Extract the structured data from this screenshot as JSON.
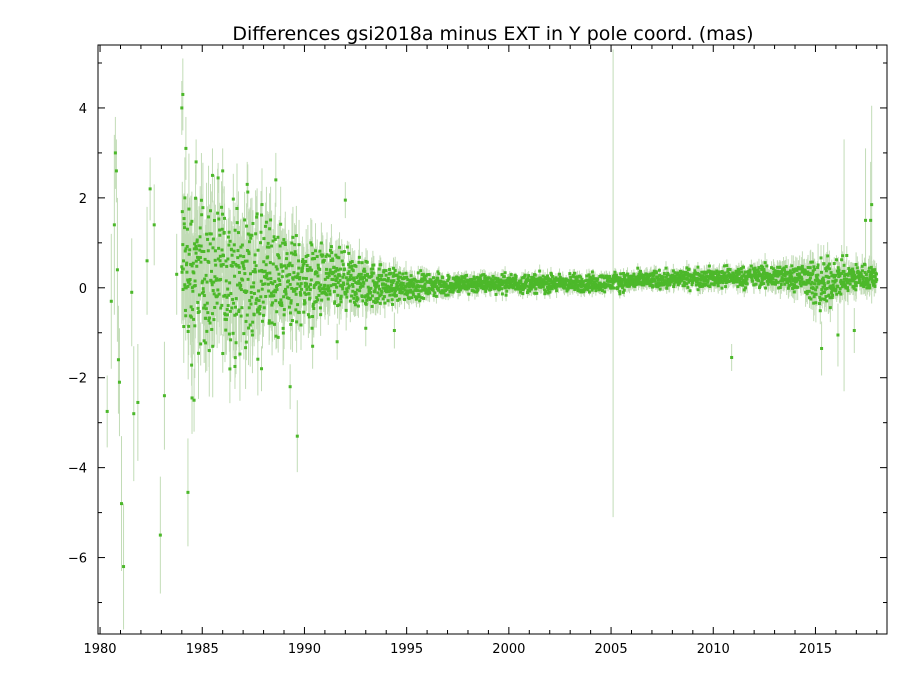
{
  "chart_data": {
    "type": "scatter",
    "title": "Differences gsi2018a minus EXT in Y pole coord. (mas)",
    "xlabel": "",
    "ylabel": "",
    "xlim": [
      1979.9,
      2018.5
    ],
    "ylim": [
      -7.7,
      5.4
    ],
    "xticks": [
      1980,
      1985,
      1990,
      1995,
      2000,
      2005,
      2010,
      2015
    ],
    "xtick_labels": [
      "1980",
      "1985",
      "1990",
      "1995",
      "2000",
      "2005",
      "2010",
      "2015"
    ],
    "yticks": [
      -6,
      -4,
      -2,
      0,
      2,
      4
    ],
    "ytick_labels": [
      "−6",
      "−4",
      "−2",
      "0",
      "2",
      "4"
    ],
    "grid": false,
    "colors": {
      "points": "#4cb82a",
      "error_bars": "#c2dcb7"
    },
    "series": [
      {
        "points": [
          {
            "x": 1980.35,
            "y": -2.75,
            "err": 0.8
          },
          {
            "x": 1980.55,
            "y": -0.3,
            "err": 1.5
          },
          {
            "x": 1980.7,
            "y": 1.4,
            "err": 2.0
          },
          {
            "x": 1980.75,
            "y": 3.0,
            "err": 0.8
          },
          {
            "x": 1980.8,
            "y": 2.6,
            "err": 0.7
          },
          {
            "x": 1980.85,
            "y": 0.4,
            "err": 1.6
          },
          {
            "x": 1980.9,
            "y": -1.6,
            "err": 1.2
          },
          {
            "x": 1980.95,
            "y": -2.1,
            "err": 1.2
          },
          {
            "x": 1981.05,
            "y": -4.8,
            "err": 1.5
          },
          {
            "x": 1981.15,
            "y": -6.2,
            "err": 1.4
          },
          {
            "x": 1981.55,
            "y": -0.1,
            "err": 1.2
          },
          {
            "x": 1981.65,
            "y": -2.8,
            "err": 1.5
          },
          {
            "x": 1981.85,
            "y": -2.55,
            "err": 1.3
          },
          {
            "x": 1982.3,
            "y": 0.6,
            "err": 1.2
          },
          {
            "x": 1982.45,
            "y": 2.2,
            "err": 0.7
          },
          {
            "x": 1982.65,
            "y": 1.4,
            "err": 0.9
          },
          {
            "x": 1982.95,
            "y": -5.5,
            "err": 1.3
          },
          {
            "x": 1983.15,
            "y": -2.4,
            "err": 1.2
          },
          {
            "x": 1983.75,
            "y": 0.3,
            "err": 0.9
          },
          {
            "x": 1984.0,
            "y": 4.0,
            "err": 0.6
          },
          {
            "x": 1984.05,
            "y": 4.3,
            "err": 0.8
          },
          {
            "x": 1984.15,
            "y": 2.0,
            "err": 0.9
          },
          {
            "x": 1984.2,
            "y": 3.1,
            "err": 0.7
          },
          {
            "x": 1984.3,
            "y": -4.55,
            "err": 1.2
          },
          {
            "x": 1984.5,
            "y": -2.45,
            "err": 0.8
          },
          {
            "x": 1984.6,
            "y": -2.5,
            "err": 0.7
          },
          {
            "x": 1984.7,
            "y": 2.8,
            "err": 0.5
          },
          {
            "x": 1985.5,
            "y": 2.5,
            "err": 0.6
          },
          {
            "x": 1986.0,
            "y": 2.6,
            "err": 0.5
          },
          {
            "x": 1986.6,
            "y": -1.75,
            "err": 0.5
          },
          {
            "x": 1987.2,
            "y": 2.3,
            "err": 0.5
          },
          {
            "x": 1987.9,
            "y": -1.8,
            "err": 0.5
          },
          {
            "x": 1988.6,
            "y": 2.4,
            "err": 0.6
          },
          {
            "x": 1989.3,
            "y": -2.2,
            "err": 0.5
          },
          {
            "x": 1989.65,
            "y": -3.3,
            "err": 0.8
          },
          {
            "x": 1990.4,
            "y": -1.3,
            "err": 0.5
          },
          {
            "x": 1991.6,
            "y": -1.2,
            "err": 0.4
          },
          {
            "x": 1992.0,
            "y": 1.95,
            "err": 0.4
          },
          {
            "x": 1993.0,
            "y": -0.9,
            "err": 0.4
          },
          {
            "x": 1994.4,
            "y": -0.95,
            "err": 0.4
          },
          {
            "x": 2005.1,
            "y": 0.1,
            "err": 5.2
          },
          {
            "x": 2010.9,
            "y": -1.55,
            "err": 0.3
          },
          {
            "x": 2015.3,
            "y": -1.35,
            "err": 0.6
          },
          {
            "x": 2016.1,
            "y": -1.05,
            "err": 0.7
          },
          {
            "x": 2016.4,
            "y": 0.5,
            "err": 2.8
          },
          {
            "x": 2016.9,
            "y": -0.95,
            "err": 0.5
          },
          {
            "x": 2017.45,
            "y": 1.5,
            "err": 1.6
          },
          {
            "x": 2017.7,
            "y": 1.5,
            "err": 1.3
          },
          {
            "x": 2017.75,
            "y": 1.85,
            "err": 2.2
          }
        ],
        "trend": [
          {
            "x": 1984.0,
            "y": 0.3,
            "spread": 1.1,
            "err": 0.9
          },
          {
            "x": 1986.0,
            "y": 0.25,
            "spread": 0.95,
            "err": 0.8
          },
          {
            "x": 1988.0,
            "y": 0.2,
            "spread": 0.85,
            "err": 0.7
          },
          {
            "x": 1990.0,
            "y": 0.15,
            "spread": 0.55,
            "err": 0.5
          },
          {
            "x": 1992.0,
            "y": 0.1,
            "spread": 0.4,
            "err": 0.35
          },
          {
            "x": 1994.0,
            "y": 0.05,
            "spread": 0.25,
            "err": 0.25
          },
          {
            "x": 1996.0,
            "y": 0.05,
            "spread": 0.15,
            "err": 0.15
          },
          {
            "x": 1999.0,
            "y": 0.1,
            "spread": 0.12,
            "err": 0.12
          },
          {
            "x": 2004.0,
            "y": 0.1,
            "spread": 0.12,
            "err": 0.12
          },
          {
            "x": 2008.0,
            "y": 0.2,
            "spread": 0.12,
            "err": 0.12
          },
          {
            "x": 2012.0,
            "y": 0.25,
            "spread": 0.14,
            "err": 0.15
          },
          {
            "x": 2014.5,
            "y": 0.25,
            "spread": 0.2,
            "err": 0.25
          },
          {
            "x": 2015.2,
            "y": 0.0,
            "spread": 0.4,
            "err": 0.35
          },
          {
            "x": 2016.0,
            "y": 0.2,
            "spread": 0.25,
            "err": 0.25
          },
          {
            "x": 2018.0,
            "y": 0.25,
            "spread": 0.15,
            "err": 0.2
          }
        ]
      }
    ]
  }
}
